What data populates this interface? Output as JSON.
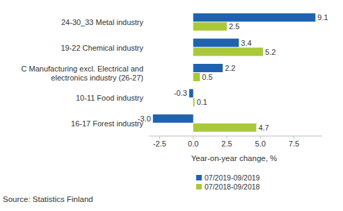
{
  "chart_data": {
    "type": "bar",
    "orientation": "horizontal",
    "categories": [
      "24-30_33 Metal industry",
      "19-22 Chemical industry",
      "C Manufacturing excl. Electrical and electronics industry (26-27)",
      "10-11 Food industry",
      "16-17 Forest industry"
    ],
    "series": [
      {
        "name": "07/2019-09/2019",
        "color": "#1f63b0",
        "values": [
          9.1,
          3.4,
          2.2,
          -0.3,
          -3.0
        ],
        "value_labels": [
          "9.1",
          "3.4",
          "2.2",
          "-0.3",
          "-3.0"
        ]
      },
      {
        "name": "07/2018-09/2018",
        "color": "#a9c93b",
        "values": [
          2.5,
          5.2,
          0.5,
          0.1,
          4.7
        ]
      }
    ],
    "xlim": [
      -3.3,
      9.6
    ],
    "xticks": [
      -2.5,
      {
        "value": 0,
        "label": "0.0"
      },
      2.5,
      {
        "value": 5,
        "label": "5.0"
      },
      7.5
    ],
    "x_label": "Year-on-year change, %",
    "source": "Source: Statistics Finland",
    "data_labels": true,
    "grid": false,
    "legend": "bottom"
  }
}
